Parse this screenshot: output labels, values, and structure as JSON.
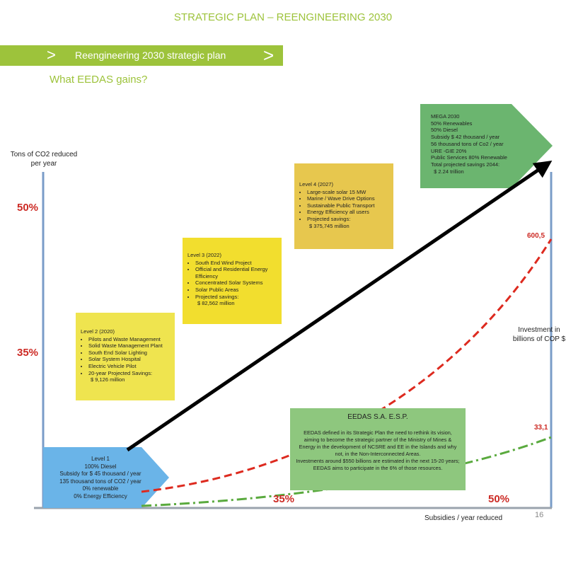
{
  "page": {
    "title": "STRATEGIC PLAN – REENGINEERING 2030",
    "banner": "Reengineering 2030 strategic plan",
    "banner_chevron": ">",
    "subtitle": "What EEDAS gains?",
    "page_number": "16"
  },
  "axes": {
    "left_title_line1": "Tons of CO2 reduced",
    "left_title_line2": "per year",
    "right_title_line1": "Investment in",
    "right_title_line2": "billions of COP $",
    "bottom_title": "Subsidies / year reduced",
    "left_labels": [
      "50%",
      "35%"
    ],
    "bottom_labels": [
      "35%",
      "50%"
    ]
  },
  "curves": {
    "red_value": "600,5",
    "green_value": "33,1",
    "colors": {
      "red": "#dd2a1f",
      "green": "#5aaa3e",
      "arrow": "#000000",
      "axis": "#7a9cc8"
    }
  },
  "level1": {
    "title": "Level 1",
    "lines": [
      "100% Diesel",
      "Subsidy for $ 45 thousand / year",
      "135 thousand tons of CO2 / year",
      "0% renewable",
      "0% Energy Efficiency"
    ],
    "color": "#6ab4e8"
  },
  "level2": {
    "title": "Level 2 (2020)",
    "items": [
      "Pilots and Waste Management",
      "Solid Waste Management Plant",
      "South End Solar Lighting",
      "Solar System Hospital",
      "Electric Vehicle Pilot",
      "20-year Projected Savings:"
    ],
    "amount": "$ 9,126 million",
    "color": "#efe44f"
  },
  "level3": {
    "title": "Level 3 (2022)",
    "items": [
      "South End Wind Project",
      "Official and Residential Energy Efficiency",
      "Concentrated Solar Systems",
      "Solar Public Areas",
      "Projected savings:"
    ],
    "amount": "$ 82,562 million",
    "color": "#f2de2e"
  },
  "level4": {
    "title": "Level 4 (2027)",
    "items": [
      "Large-scale solar 15 MW",
      "Marine / Wave Drive Options",
      "Sustainable Public Transport",
      "Energy Efficiency all users",
      "Projected savings:"
    ],
    "amount": "$ 375,745 million",
    "color": "#e7c74e"
  },
  "mega": {
    "lines": [
      "MEGA 2030",
      "50% Renewables",
      "50% Diesel",
      "Subsidy $ 42 thousand / year",
      "56 thousand tons of Co2 / year",
      "URE -GIE 20%",
      "Public Services 80% Renewable",
      "Total projected savings 2044:",
      "  $ 2.24 trillion"
    ],
    "color": "#6bb56f"
  },
  "eedas": {
    "title": "EEDAS S.A. E.S.P.",
    "body1": "EEDAS defined in its Strategic Plan the need to rethink its vision, aiming to become the strategic partner of the Ministry of Mines & Energy in the development of NCSRE and EE in the Islands and why not, in the Non-Interconnected Areas.",
    "body2": "Investments around $550 billions are estimated in the next 15-20 years; EEDAS aims to participate in the 6% of those resources.",
    "color": "#8ec77e"
  }
}
